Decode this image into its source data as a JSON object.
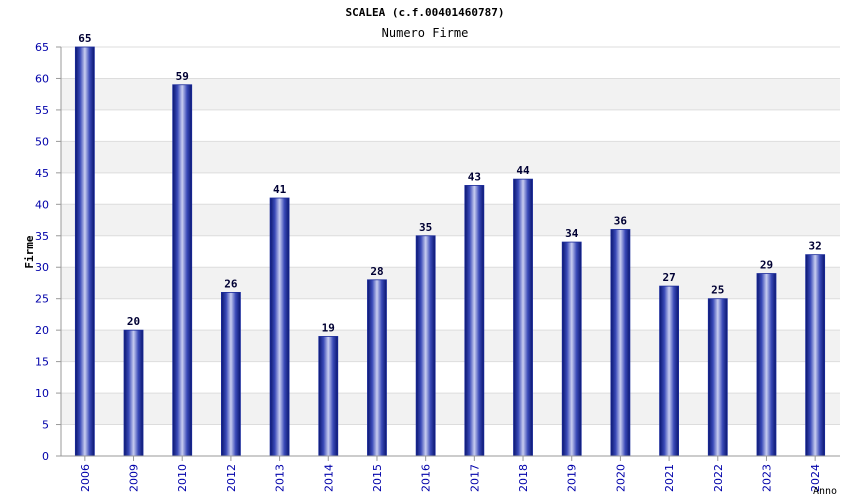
{
  "chart_data": {
    "type": "bar",
    "title": "SCALEA (c.f.00401460787)",
    "subtitle": "Numero Firme",
    "ylabel": "Firme",
    "xlabel": "Anno",
    "categories": [
      "2006",
      "2009",
      "2010",
      "2012",
      "2013",
      "2014",
      "2015",
      "2016",
      "2017",
      "2018",
      "2019",
      "2020",
      "2021",
      "2022",
      "2023",
      "2024"
    ],
    "values": [
      65,
      20,
      59,
      26,
      41,
      19,
      28,
      35,
      43,
      44,
      34,
      36,
      27,
      25,
      29,
      32
    ],
    "ylim": [
      0,
      65
    ],
    "yticks": [
      0,
      5,
      10,
      15,
      20,
      25,
      30,
      35,
      40,
      45,
      50,
      55,
      60,
      65
    ],
    "grid": true,
    "bar_color": "#1a2a9a",
    "band_color": "#f2f2f2",
    "tick_color": "#0000aa"
  }
}
